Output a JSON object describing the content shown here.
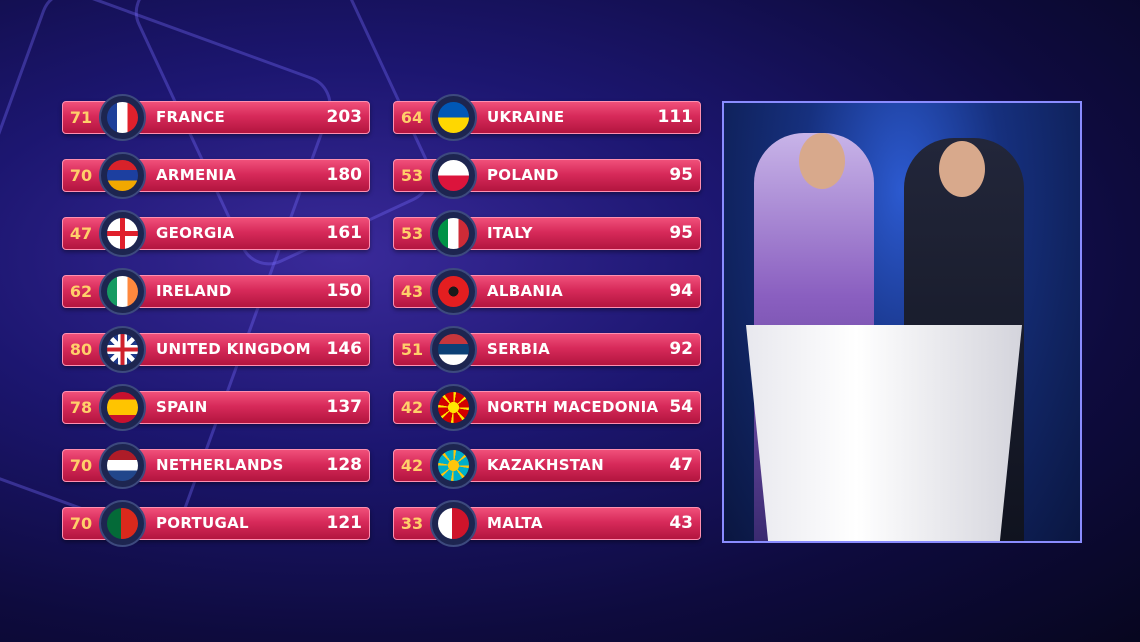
{
  "scoreboard": {
    "left": [
      {
        "jury": "71",
        "country": "FRANCE",
        "points": "203",
        "flag": {
          "dir": "v",
          "colors": [
            "#1d3f9a",
            "#ffffff",
            "#e0202c"
          ]
        }
      },
      {
        "jury": "70",
        "country": "ARMENIA",
        "points": "180",
        "flag": {
          "dir": "h",
          "colors": [
            "#d8222a",
            "#1c3fa0",
            "#f2a800"
          ]
        }
      },
      {
        "jury": "47",
        "country": "GEORGIA",
        "points": "161",
        "flag": {
          "dir": "cross",
          "colors": [
            "#ffffff",
            "#e0202c"
          ]
        }
      },
      {
        "jury": "62",
        "country": "IRELAND",
        "points": "150",
        "flag": {
          "dir": "v",
          "colors": [
            "#169b62",
            "#ffffff",
            "#ff883e"
          ]
        }
      },
      {
        "jury": "80",
        "country": "UNITED KINGDOM",
        "points": "146",
        "flag": {
          "dir": "uk",
          "colors": [
            "#1f3a8a",
            "#ffffff",
            "#d0202c"
          ]
        }
      },
      {
        "jury": "78",
        "country": "SPAIN",
        "points": "137",
        "flag": {
          "dir": "h3",
          "colors": [
            "#c8102e",
            "#ffc400",
            "#c8102e"
          ]
        }
      },
      {
        "jury": "70",
        "country": "NETHERLANDS",
        "points": "128",
        "flag": {
          "dir": "h",
          "colors": [
            "#ae1c28",
            "#ffffff",
            "#21468b"
          ]
        }
      },
      {
        "jury": "70",
        "country": "PORTUGAL",
        "points": "121",
        "flag": {
          "dir": "v2",
          "colors": [
            "#046a38",
            "#da291c"
          ]
        }
      }
    ],
    "right": [
      {
        "jury": "64",
        "country": "UKRAINE",
        "points": "111",
        "flag": {
          "dir": "h",
          "colors": [
            "#0057b7",
            "#ffd700"
          ]
        }
      },
      {
        "jury": "53",
        "country": "POLAND",
        "points": "95",
        "flag": {
          "dir": "h",
          "colors": [
            "#ffffff",
            "#dc143c"
          ]
        }
      },
      {
        "jury": "53",
        "country": "ITALY",
        "points": "95",
        "flag": {
          "dir": "v",
          "colors": [
            "#009246",
            "#ffffff",
            "#ce2b37"
          ]
        }
      },
      {
        "jury": "43",
        "country": "ALBANIA",
        "points": "94",
        "flag": {
          "dir": "solid",
          "colors": [
            "#e41e20",
            "#1a1a1a"
          ]
        }
      },
      {
        "jury": "51",
        "country": "SERBIA",
        "points": "92",
        "flag": {
          "dir": "h",
          "colors": [
            "#c6363c",
            "#0c4076",
            "#ffffff"
          ]
        }
      },
      {
        "jury": "42",
        "country": "NORTH MACEDONIA",
        "points": "54",
        "flag": {
          "dir": "sun",
          "colors": [
            "#d20000",
            "#ffe600"
          ]
        }
      },
      {
        "jury": "42",
        "country": "KAZAKHSTAN",
        "points": "47",
        "flag": {
          "dir": "sun",
          "colors": [
            "#00afca",
            "#fec50c"
          ]
        }
      },
      {
        "jury": "33",
        "country": "MALTA",
        "points": "43",
        "flag": {
          "dir": "v2",
          "colors": [
            "#ffffff",
            "#cf142b"
          ]
        }
      }
    ]
  },
  "colors": {
    "bar": "#d72a5a",
    "jury_text": "#ffcf6a",
    "video_border": "#8a8cff"
  }
}
